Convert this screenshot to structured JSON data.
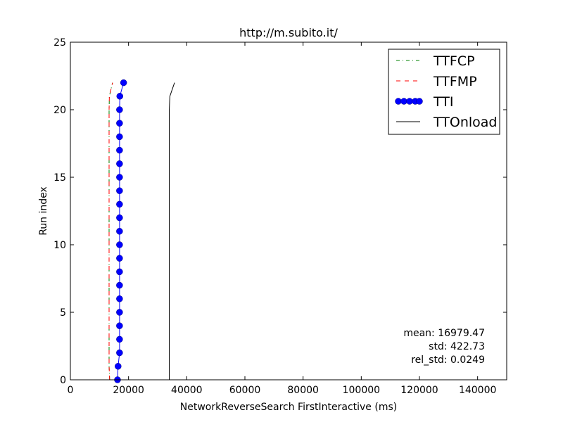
{
  "chart_data": {
    "type": "line",
    "title": "http://m.subito.it/",
    "xlabel": "NetworkReverseSearch FirstInteractive (ms)",
    "ylabel": "Run index",
    "xlim": [
      0,
      150000
    ],
    "ylim": [
      0,
      25
    ],
    "x_ticks": [
      0,
      20000,
      40000,
      60000,
      80000,
      100000,
      120000,
      140000
    ],
    "y_ticks": [
      0,
      5,
      10,
      15,
      20,
      25
    ],
    "legend_position": "top-right",
    "grid": false,
    "series": [
      {
        "name": "TTFCP",
        "color": "#008000",
        "style": "dashdot",
        "marker": "none",
        "y": [
          0,
          1,
          2,
          3,
          4,
          5,
          6,
          7,
          8,
          9,
          10,
          11,
          12,
          13,
          14,
          15,
          16,
          17,
          18,
          19,
          20,
          21,
          22
        ],
        "x": [
          13500,
          13300,
          13300,
          13300,
          13300,
          13300,
          13300,
          13300,
          13300,
          13300,
          13300,
          13300,
          13300,
          13300,
          13300,
          13300,
          13300,
          13300,
          13300,
          13300,
          13300,
          13400,
          14500
        ]
      },
      {
        "name": "TTFMP",
        "color": "#ff0000",
        "style": "dashed",
        "marker": "none",
        "y": [
          0,
          1,
          2,
          3,
          4,
          5,
          6,
          7,
          8,
          9,
          10,
          11,
          12,
          13,
          14,
          15,
          16,
          17,
          18,
          19,
          20,
          21,
          22
        ],
        "x": [
          13500,
          13300,
          13300,
          13300,
          13300,
          13300,
          13300,
          13300,
          13300,
          13300,
          13300,
          13300,
          13300,
          13300,
          13300,
          13300,
          13300,
          13300,
          13300,
          13300,
          13300,
          13400,
          14500
        ]
      },
      {
        "name": "TTI",
        "color": "#0000ff",
        "style": "solid",
        "marker": "circle",
        "y": [
          0,
          1,
          2,
          3,
          4,
          5,
          6,
          7,
          8,
          9,
          10,
          11,
          12,
          13,
          14,
          15,
          16,
          17,
          18,
          19,
          20,
          21,
          22
        ],
        "x": [
          16200,
          16400,
          16900,
          16900,
          16900,
          16900,
          16900,
          16900,
          16900,
          16900,
          16900,
          16900,
          16900,
          16900,
          16900,
          16900,
          16900,
          16900,
          16900,
          16900,
          16900,
          17000,
          18300
        ]
      },
      {
        "name": "TTOnload",
        "color": "#000000",
        "style": "solid",
        "marker": "none",
        "y": [
          0,
          1,
          2,
          3,
          4,
          5,
          6,
          7,
          8,
          9,
          10,
          11,
          12,
          13,
          14,
          15,
          16,
          17,
          18,
          19,
          20,
          21,
          22
        ],
        "x": [
          34000,
          34000,
          34000,
          34000,
          34000,
          34000,
          34000,
          34000,
          34000,
          34000,
          34000,
          34000,
          34000,
          34000,
          34000,
          34000,
          34000,
          34000,
          34000,
          34000,
          34000,
          34200,
          35800
        ]
      }
    ],
    "annotations": [
      "mean: 16979.47",
      "std: 422.73",
      "rel_std: 0.0249"
    ]
  }
}
